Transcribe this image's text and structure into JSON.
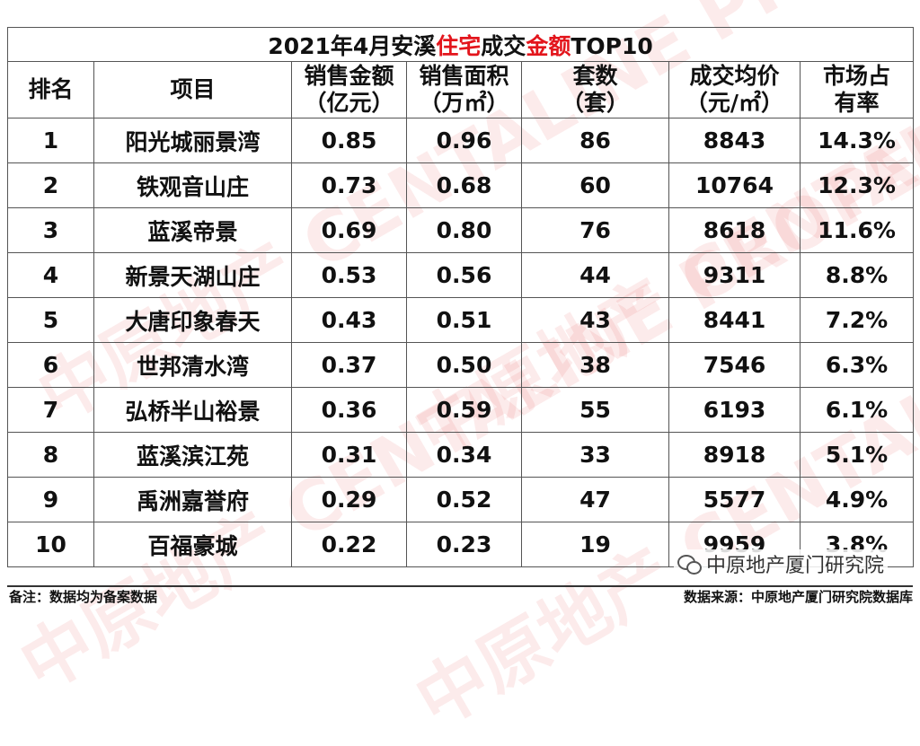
{
  "table": {
    "title": {
      "part1": "2021年4月安溪",
      "part2": "住宅",
      "part3": "成交",
      "part4": "金额",
      "part5": "TOP10"
    },
    "headers": [
      {
        "line1": "排名",
        "line2": ""
      },
      {
        "line1": "项目",
        "line2": ""
      },
      {
        "line1": "销售金额",
        "line2": "（亿元）"
      },
      {
        "line1": "销售面积",
        "line2": "（万㎡）"
      },
      {
        "line1": "套数",
        "line2": "（套）"
      },
      {
        "line1": "成交均价",
        "line2": "（元/㎡）"
      },
      {
        "line1": "市场占",
        "line2": "有率"
      }
    ],
    "rows": [
      {
        "rank": "1",
        "project": "阳光城丽景湾",
        "amount": "0.85",
        "area": "0.96",
        "units": "86",
        "price": "8843",
        "share": "14.3%"
      },
      {
        "rank": "2",
        "project": "铁观音山庄",
        "amount": "0.73",
        "area": "0.68",
        "units": "60",
        "price": "10764",
        "share": "12.3%"
      },
      {
        "rank": "3",
        "project": "蓝溪帝景",
        "amount": "0.69",
        "area": "0.80",
        "units": "76",
        "price": "8618",
        "share": "11.6%"
      },
      {
        "rank": "4",
        "project": "新景天湖山庄",
        "amount": "0.53",
        "area": "0.56",
        "units": "44",
        "price": "9311",
        "share": "8.8%"
      },
      {
        "rank": "5",
        "project": "大唐印象春天",
        "amount": "0.43",
        "area": "0.51",
        "units": "43",
        "price": "8441",
        "share": "7.2%"
      },
      {
        "rank": "6",
        "project": "世邦清水湾",
        "amount": "0.37",
        "area": "0.50",
        "units": "38",
        "price": "7546",
        "share": "6.3%"
      },
      {
        "rank": "7",
        "project": "弘桥半山裕景",
        "amount": "0.36",
        "area": "0.59",
        "units": "55",
        "price": "6193",
        "share": "6.1%"
      },
      {
        "rank": "8",
        "project": "蓝溪滨江苑",
        "amount": "0.31",
        "area": "0.34",
        "units": "33",
        "price": "8918",
        "share": "5.1%"
      },
      {
        "rank": "9",
        "project": "禹洲嘉誉府",
        "amount": "0.29",
        "area": "0.52",
        "units": "47",
        "price": "5577",
        "share": "4.9%"
      },
      {
        "rank": "10",
        "project": "百福豪城",
        "amount": "0.22",
        "area": "0.23",
        "units": "19",
        "price": "9959",
        "share": "3.8%"
      }
    ]
  },
  "footer": {
    "note": "备注：数据均为备案数据",
    "source": "数据来源：中原地产厦门研究院数据库",
    "brand": "中原地产厦门研究院",
    "brand_icon": "wechat-icon"
  },
  "colors": {
    "accent_red": "#e3151c",
    "watermark": "#e13c3c"
  },
  "watermark_text": "中原地产 CENTALINE PROPERTY"
}
